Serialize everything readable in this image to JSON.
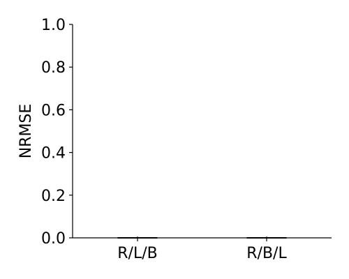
{
  "chart_data": {
    "type": "box",
    "ylabel": "NRMSE",
    "xlabel": "",
    "title": "",
    "ylim": [
      0,
      1.0
    ],
    "yticks": [
      "0.0",
      "0.2",
      "0.4",
      "0.6",
      "0.8",
      "1.0"
    ],
    "categories": [
      "R/L/B",
      "R/B/L"
    ],
    "boxes": [
      {
        "category": "R/L/B",
        "min": 0.0,
        "q1": 0.0,
        "median": 0.0,
        "q3": 0.0,
        "max": 0.0
      },
      {
        "category": "R/B/L",
        "min": 0.0,
        "q1": 0.0,
        "median": 0.0,
        "q3": 0.0,
        "max": 0.0
      }
    ],
    "grid": false,
    "colors": {
      "axis": "#000000",
      "box": "#000000"
    }
  }
}
